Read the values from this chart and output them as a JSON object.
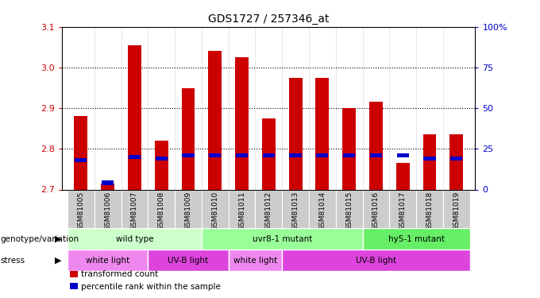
{
  "title": "GDS1727 / 257346_at",
  "samples": [
    "GSM81005",
    "GSM81006",
    "GSM81007",
    "GSM81008",
    "GSM81009",
    "GSM81010",
    "GSM81011",
    "GSM81012",
    "GSM81013",
    "GSM81014",
    "GSM81015",
    "GSM81016",
    "GSM81017",
    "GSM81018",
    "GSM81019"
  ],
  "transformed_count": [
    2.88,
    2.715,
    3.055,
    2.82,
    2.95,
    3.04,
    3.025,
    2.875,
    2.975,
    2.975,
    2.9,
    2.915,
    2.765,
    2.835,
    2.835
  ],
  "percentile_rank_pct": [
    18,
    4,
    20,
    19,
    21,
    21,
    21,
    21,
    21,
    21,
    21,
    21,
    21,
    19,
    19
  ],
  "bar_color": "#cc0000",
  "blue_color": "#0000cc",
  "y_min": 2.7,
  "y_max": 3.1,
  "y_ticks": [
    2.7,
    2.8,
    2.9,
    3.0,
    3.1
  ],
  "right_y_ticks": [
    0,
    25,
    50,
    75,
    100
  ],
  "right_y_labels": [
    "0",
    "25",
    "50",
    "75",
    "100%"
  ],
  "genotype_groups": [
    {
      "label": "wild type",
      "start": 0,
      "end": 5,
      "color": "#ccffcc"
    },
    {
      "label": "uvr8-1 mutant",
      "start": 5,
      "end": 11,
      "color": "#99ff99"
    },
    {
      "label": "hy5-1 mutant",
      "start": 11,
      "end": 15,
      "color": "#66ee66"
    }
  ],
  "stress_groups": [
    {
      "label": "white light",
      "start": 0,
      "end": 3,
      "color": "#ee88ee"
    },
    {
      "label": "UV-B light",
      "start": 3,
      "end": 6,
      "color": "#dd44dd"
    },
    {
      "label": "white light",
      "start": 6,
      "end": 8,
      "color": "#ee88ee"
    },
    {
      "label": "UV-B light",
      "start": 8,
      "end": 15,
      "color": "#dd44dd"
    }
  ],
  "bar_width": 0.5,
  "bg_color": "#ffffff",
  "axis_color_left": "#cc0000",
  "axis_color_right": "#0000cc",
  "tick_label_bg": "#cccccc",
  "left_label_genotype": "genotype/variation",
  "left_label_stress": "stress",
  "legend_red": "transformed count",
  "legend_blue": "percentile rank within the sample"
}
